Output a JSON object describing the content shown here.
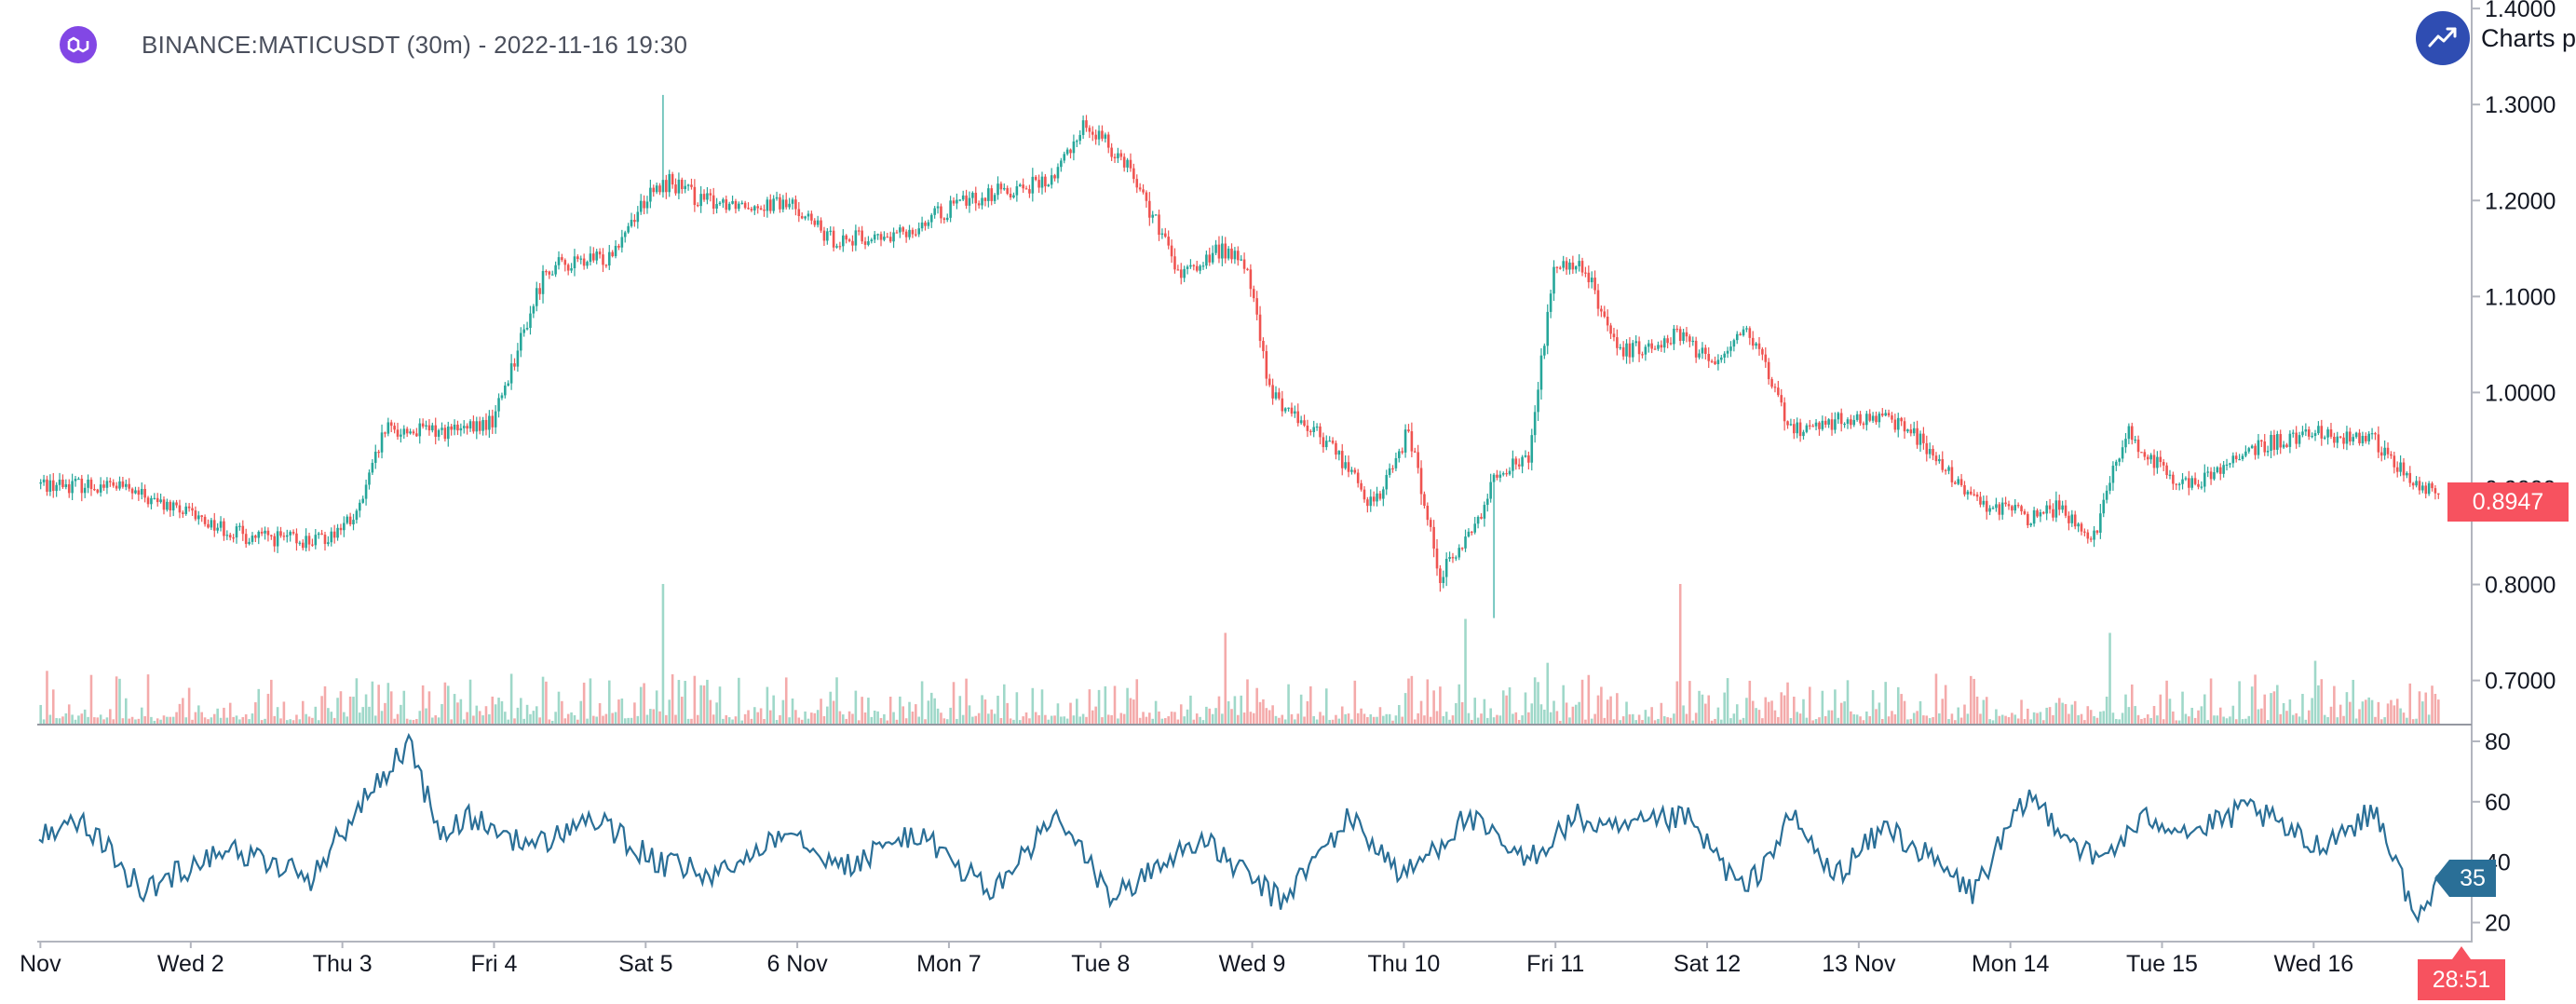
{
  "header": {
    "title": "BINANCE:MATICUSDT (30m) - 2022-11-16 19:30",
    "coin_icon": "polygon-matic-icon",
    "brand_text": "Charts p",
    "brand_icon": "trend-up-icon"
  },
  "colors": {
    "up": "#26a69a",
    "down": "#ef5350",
    "up_volume": "#9fd8c9",
    "down_volume": "#f4aaaa",
    "rsi_line": "#2a6f97",
    "last_price_tag": "#f7525f",
    "rsi_tag": "#2a6f97",
    "axis": "#b2b5be",
    "brand": "#2f4db2",
    "coin": "#8247e5"
  },
  "price_tag": "0.8947",
  "rsi_tag": "35",
  "countdown": "28:51",
  "chart_data": [
    {
      "type": "candlestick",
      "title": "BINANCE:MATICUSDT (30m) - 2022-11-16 19:30",
      "interval": "30m",
      "y_scale": "linear",
      "ylim": [
        0.655,
        1.405
      ],
      "y_ticks": [
        "1.4000",
        "1.3000",
        "1.2000",
        "1.1000",
        "1.0000",
        "0.9000",
        "0.8000",
        "0.7000"
      ],
      "x_ticks": [
        "Nov",
        "Wed 2",
        "Thu 3",
        "Fri 4",
        "Sat 5",
        "6 Nov",
        "Mon 7",
        "Tue 8",
        "Wed 9",
        "Thu 10",
        "Fri 11",
        "Sat 12",
        "13 Nov",
        "Mon 14",
        "Tue 15",
        "Wed 16"
      ],
      "x_tick_steps": [
        0.4,
        48,
        96,
        144,
        192,
        240,
        288,
        336,
        384,
        432,
        480,
        528,
        576,
        624,
        672,
        720
      ],
      "bar_count": 760,
      "close_path": [
        [
          0,
          0.905
        ],
        [
          25,
          0.903
        ],
        [
          34,
          0.89
        ],
        [
          50,
          0.87
        ],
        [
          66,
          0.85
        ],
        [
          89,
          0.845
        ],
        [
          101,
          0.87
        ],
        [
          110,
          0.96
        ],
        [
          136,
          0.96
        ],
        [
          144,
          0.97
        ],
        [
          161,
          1.13
        ],
        [
          180,
          1.14
        ],
        [
          192,
          1.2
        ],
        [
          200,
          1.22
        ],
        [
          210,
          1.2
        ],
        [
          240,
          1.195
        ],
        [
          250,
          1.16
        ],
        [
          270,
          1.16
        ],
        [
          294,
          1.2
        ],
        [
          305,
          1.21
        ],
        [
          321,
          1.22
        ],
        [
          331,
          1.28
        ],
        [
          345,
          1.24
        ],
        [
          362,
          1.12
        ],
        [
          375,
          1.15
        ],
        [
          383,
          1.13
        ],
        [
          390,
          1.0
        ],
        [
          411,
          0.94
        ],
        [
          423,
          0.88
        ],
        [
          434,
          0.96
        ],
        [
          444,
          0.81
        ],
        [
          455,
          0.86
        ],
        [
          462,
          0.92
        ],
        [
          472,
          0.93
        ],
        [
          480,
          1.13
        ],
        [
          490,
          1.13
        ],
        [
          500,
          1.04
        ],
        [
          520,
          1.06
        ],
        [
          530,
          1.03
        ],
        [
          541,
          1.07
        ],
        [
          555,
          0.96
        ],
        [
          568,
          0.97
        ],
        [
          590,
          0.97
        ],
        [
          612,
          0.89
        ],
        [
          630,
          0.87
        ],
        [
          640,
          0.88
        ],
        [
          651,
          0.85
        ],
        [
          661,
          0.96
        ],
        [
          670,
          0.93
        ],
        [
          681,
          0.9
        ],
        [
          700,
          0.94
        ],
        [
          720,
          0.96
        ],
        [
          740,
          0.95
        ],
        [
          753,
          0.9
        ],
        [
          760,
          0.8947
        ]
      ],
      "annotated_extremes": [
        {
          "label": "high",
          "step": 197,
          "value": 1.31
        },
        {
          "label": "low",
          "step": 460,
          "value": 0.765
        }
      ],
      "last_close": 0.8947,
      "volume": {
        "scale": "relative",
        "spikes": [
          {
            "step": 197,
            "value": 1.0
          },
          {
            "step": 375,
            "value": 0.65
          },
          {
            "step": 451,
            "value": 0.75
          },
          {
            "step": 519,
            "value": 1.0
          },
          {
            "step": 655,
            "value": 0.65
          },
          {
            "step": 720,
            "value": 0.45
          }
        ]
      }
    },
    {
      "type": "line",
      "indicator": "RSI",
      "ylim": [
        14,
        84
      ],
      "y_ticks": [
        "80",
        "60",
        "40",
        "20"
      ],
      "last_value": 35,
      "x": [
        0,
        13,
        33,
        58,
        86,
        104,
        117,
        127,
        135,
        157,
        175,
        195,
        215,
        237,
        255,
        277,
        302,
        322,
        340,
        367,
        393,
        415,
        432,
        452,
        470,
        487,
        497,
        521,
        540,
        555,
        568,
        585,
        612,
        630,
        651,
        668,
        683,
        700,
        720,
        740,
        753,
        760
      ],
      "values": [
        50,
        55,
        30,
        45,
        35,
        62,
        80,
        48,
        55,
        45,
        55,
        40,
        35,
        52,
        38,
        50,
        30,
        55,
        28,
        48,
        27,
        55,
        35,
        55,
        40,
        55,
        50,
        55,
        30,
        55,
        35,
        52,
        30,
        62,
        40,
        55,
        50,
        58,
        45,
        57,
        20,
        35
      ]
    }
  ]
}
